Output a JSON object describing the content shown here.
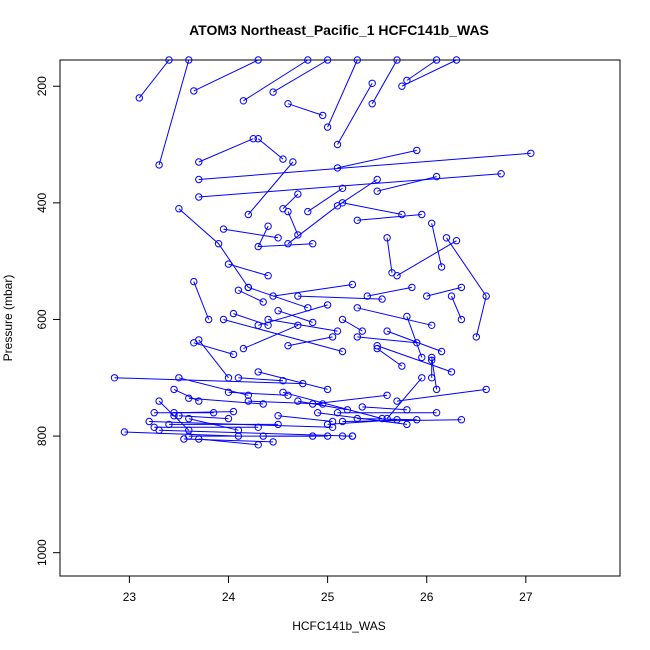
{
  "chart_data": {
    "type": "line",
    "title": "ATOM3 Northeast_Pacific_1 HCFC141b_WAS",
    "xlabel": "HCFC141b_WAS",
    "ylabel": "Pressure (mbar)",
    "xlim": [
      22.3,
      27.95
    ],
    "ylim": [
      1040,
      155
    ],
    "y_reversed": true,
    "x_ticks": [
      23,
      24,
      25,
      26,
      27
    ],
    "y_ticks": [
      200,
      400,
      600,
      800,
      1000
    ],
    "grid": false,
    "legend": "none",
    "series_color": "#0000ff",
    "marker": "open-circle",
    "series": [
      {
        "points": [
          [
            23.1,
            220
          ],
          [
            23.4,
            155
          ]
        ]
      },
      {
        "points": [
          [
            23.3,
            335
          ],
          [
            23.6,
            155
          ]
        ]
      },
      {
        "points": [
          [
            23.65,
            208
          ],
          [
            24.3,
            155
          ]
        ]
      },
      {
        "points": [
          [
            23.7,
            330
          ],
          [
            24.25,
            290
          ]
        ]
      },
      {
        "points": [
          [
            24.15,
            225
          ],
          [
            24.8,
            155
          ]
        ]
      },
      {
        "points": [
          [
            24.6,
            230
          ],
          [
            24.95,
            250
          ]
        ]
      },
      {
        "points": [
          [
            24.45,
            210
          ],
          [
            25.0,
            155
          ]
        ]
      },
      {
        "points": [
          [
            25.0,
            270
          ],
          [
            25.3,
            155
          ]
        ]
      },
      {
        "points": [
          [
            25.1,
            300
          ],
          [
            25.45,
            195
          ]
        ]
      },
      {
        "points": [
          [
            25.45,
            230
          ],
          [
            25.7,
            155
          ]
        ]
      },
      {
        "points": [
          [
            25.8,
            190
          ],
          [
            26.1,
            155
          ]
        ]
      },
      {
        "points": [
          [
            25.75,
            200
          ],
          [
            26.3,
            155
          ]
        ]
      },
      {
        "points": [
          [
            24.3,
            290
          ],
          [
            24.55,
            325
          ]
        ]
      },
      {
        "points": [
          [
            23.5,
            410
          ],
          [
            23.9,
            470
          ],
          [
            24.2,
            545
          ]
        ]
      },
      {
        "points": [
          [
            23.65,
            535
          ],
          [
            23.8,
            600
          ]
        ]
      },
      {
        "points": [
          [
            23.7,
            635
          ],
          [
            24.0,
            700
          ]
        ]
      },
      {
        "points": [
          [
            23.7,
            360
          ],
          [
            27.05,
            315
          ]
        ]
      },
      {
        "points": [
          [
            23.7,
            390
          ],
          [
            26.75,
            350
          ]
        ]
      },
      {
        "points": [
          [
            23.95,
            445
          ],
          [
            24.5,
            460
          ]
        ]
      },
      {
        "points": [
          [
            24.2,
            420
          ],
          [
            24.65,
            330
          ]
        ]
      },
      {
        "points": [
          [
            24.4,
            440
          ],
          [
            24.3,
            475
          ],
          [
            24.85,
            470
          ]
        ]
      },
      {
        "points": [
          [
            24.55,
            410
          ],
          [
            24.7,
            385
          ]
        ]
      },
      {
        "points": [
          [
            24.6,
            415
          ],
          [
            24.7,
            455
          ]
        ]
      },
      {
        "points": [
          [
            24.8,
            415
          ],
          [
            25.15,
            375
          ]
        ]
      },
      {
        "points": [
          [
            24.6,
            470
          ],
          [
            25.1,
            405
          ],
          [
            25.5,
            360
          ]
        ]
      },
      {
        "points": [
          [
            25.15,
            400
          ],
          [
            25.75,
            420
          ]
        ]
      },
      {
        "points": [
          [
            25.3,
            430
          ],
          [
            25.95,
            420
          ]
        ]
      },
      {
        "points": [
          [
            25.5,
            380
          ],
          [
            26.1,
            355
          ]
        ]
      },
      {
        "points": [
          [
            25.1,
            340
          ],
          [
            25.9,
            310
          ]
        ]
      },
      {
        "points": [
          [
            25.6,
            460
          ],
          [
            25.65,
            520
          ]
        ]
      },
      {
        "points": [
          [
            25.7,
            525
          ],
          [
            26.3,
            465
          ]
        ]
      },
      {
        "points": [
          [
            26.2,
            460
          ],
          [
            26.6,
            560
          ],
          [
            26.5,
            630
          ]
        ]
      },
      {
        "points": [
          [
            26.05,
            435
          ],
          [
            26.15,
            510
          ]
        ]
      },
      {
        "points": [
          [
            26.35,
            545
          ],
          [
            26.0,
            560
          ]
        ]
      },
      {
        "points": [
          [
            24.0,
            505
          ],
          [
            24.4,
            525
          ]
        ]
      },
      {
        "points": [
          [
            24.2,
            545
          ],
          [
            24.8,
            580
          ]
        ]
      },
      {
        "points": [
          [
            24.1,
            550
          ],
          [
            24.35,
            570
          ]
        ]
      },
      {
        "points": [
          [
            23.95,
            600
          ],
          [
            25.15,
            655
          ]
        ]
      },
      {
        "points": [
          [
            24.05,
            590
          ],
          [
            24.4,
            610
          ]
        ]
      },
      {
        "points": [
          [
            24.4,
            600
          ],
          [
            25.1,
            620
          ]
        ]
      },
      {
        "points": [
          [
            24.15,
            650
          ],
          [
            24.7,
            610
          ]
        ]
      },
      {
        "points": [
          [
            23.65,
            640
          ],
          [
            24.05,
            660
          ]
        ]
      },
      {
        "points": [
          [
            24.3,
            610
          ],
          [
            25.0,
            575
          ]
        ]
      },
      {
        "points": [
          [
            24.45,
            560
          ],
          [
            25.25,
            540
          ]
        ]
      },
      {
        "points": [
          [
            24.6,
            645
          ],
          [
            25.05,
            630
          ]
        ]
      },
      {
        "points": [
          [
            24.5,
            585
          ],
          [
            24.85,
            605
          ]
        ]
      },
      {
        "points": [
          [
            24.7,
            560
          ],
          [
            25.55,
            565
          ]
        ]
      },
      {
        "points": [
          [
            25.15,
            600
          ],
          [
            25.35,
            620
          ]
        ]
      },
      {
        "points": [
          [
            25.3,
            580
          ],
          [
            26.05,
            610
          ]
        ]
      },
      {
        "points": [
          [
            25.4,
            560
          ],
          [
            25.85,
            545
          ]
        ]
      },
      {
        "points": [
          [
            25.5,
            645
          ],
          [
            26.25,
            690
          ]
        ]
      },
      {
        "points": [
          [
            25.3,
            630
          ],
          [
            25.9,
            640
          ]
        ]
      },
      {
        "points": [
          [
            25.5,
            650
          ],
          [
            25.75,
            680
          ]
        ]
      },
      {
        "points": [
          [
            25.6,
            620
          ],
          [
            26.15,
            655
          ]
        ]
      },
      {
        "points": [
          [
            25.8,
            595
          ],
          [
            25.95,
            665
          ]
        ]
      },
      {
        "points": [
          [
            26.05,
            670
          ],
          [
            26.05,
            700
          ]
        ]
      },
      {
        "points": [
          [
            26.25,
            560
          ],
          [
            26.35,
            600
          ]
        ]
      },
      {
        "points": [
          [
            25.95,
            700
          ],
          [
            25.6,
            770
          ]
        ]
      },
      {
        "points": [
          [
            26.05,
            665
          ],
          [
            26.1,
            720
          ]
        ]
      },
      {
        "points": [
          [
            26.6,
            720
          ],
          [
            25.7,
            740
          ]
        ]
      },
      {
        "points": [
          [
            22.85,
            700
          ],
          [
            24.75,
            710
          ]
        ]
      },
      {
        "points": [
          [
            23.5,
            700
          ],
          [
            24.2,
            730
          ]
        ]
      },
      {
        "points": [
          [
            23.45,
            720
          ],
          [
            23.7,
            740
          ]
        ]
      },
      {
        "points": [
          [
            23.6,
            735
          ],
          [
            24.35,
            745
          ]
        ]
      },
      {
        "points": [
          [
            23.3,
            740
          ],
          [
            23.45,
            765
          ],
          [
            23.6,
            790
          ]
        ]
      },
      {
        "points": [
          [
            23.45,
            760
          ],
          [
            24.05,
            758
          ]
        ]
      },
      {
        "points": [
          [
            23.5,
            765
          ],
          [
            24.0,
            770
          ]
        ]
      },
      {
        "points": [
          [
            23.4,
            780
          ],
          [
            24.5,
            780
          ]
        ]
      },
      {
        "points": [
          [
            23.6,
            770
          ],
          [
            24.1,
            790
          ]
        ]
      },
      {
        "points": [
          [
            23.2,
            775
          ],
          [
            25.05,
            785
          ]
        ]
      },
      {
        "points": [
          [
            23.3,
            790
          ],
          [
            25.25,
            800
          ]
        ]
      },
      {
        "points": [
          [
            23.55,
            805
          ],
          [
            24.45,
            810
          ]
        ]
      },
      {
        "points": [
          [
            23.7,
            805
          ],
          [
            24.3,
            815
          ]
        ]
      },
      {
        "points": [
          [
            22.95,
            793
          ],
          [
            24.1,
            800
          ]
        ]
      },
      {
        "points": [
          [
            23.25,
            785
          ],
          [
            24.3,
            785
          ]
        ]
      },
      {
        "points": [
          [
            23.25,
            760
          ],
          [
            23.85,
            760
          ]
        ]
      },
      {
        "points": [
          [
            23.6,
            800
          ],
          [
            24.85,
            800
          ]
        ]
      },
      {
        "points": [
          [
            24.0,
            725
          ],
          [
            24.6,
            730
          ]
        ]
      },
      {
        "points": [
          [
            24.2,
            740
          ],
          [
            24.95,
            745
          ]
        ]
      },
      {
        "points": [
          [
            24.3,
            690
          ],
          [
            25.0,
            720
          ]
        ]
      },
      {
        "points": [
          [
            24.1,
            700
          ],
          [
            24.55,
            705
          ]
        ]
      },
      {
        "points": [
          [
            24.5,
            765
          ],
          [
            25.05,
            775
          ]
        ]
      },
      {
        "points": [
          [
            24.7,
            740
          ],
          [
            25.2,
            755
          ]
        ]
      },
      {
        "points": [
          [
            24.55,
            725
          ],
          [
            25.55,
            770
          ]
        ]
      },
      {
        "points": [
          [
            24.85,
            745
          ],
          [
            25.6,
            730
          ]
        ]
      },
      {
        "points": [
          [
            24.9,
            760
          ],
          [
            25.8,
            780
          ]
        ]
      },
      {
        "points": [
          [
            25.15,
            775
          ],
          [
            26.35,
            772
          ]
        ]
      },
      {
        "points": [
          [
            25.3,
            770
          ],
          [
            25.9,
            772
          ]
        ]
      },
      {
        "points": [
          [
            25.0,
            780
          ],
          [
            25.7,
            772
          ]
        ]
      },
      {
        "points": [
          [
            25.1,
            760
          ],
          [
            26.1,
            760
          ]
        ]
      },
      {
        "points": [
          [
            25.35,
            750
          ],
          [
            25.8,
            755
          ]
        ]
      },
      {
        "points": [
          [
            25.15,
            800
          ],
          [
            25.25,
            800
          ]
        ]
      },
      {
        "points": [
          [
            24.35,
            800
          ],
          [
            25.0,
            800
          ]
        ]
      }
    ]
  }
}
